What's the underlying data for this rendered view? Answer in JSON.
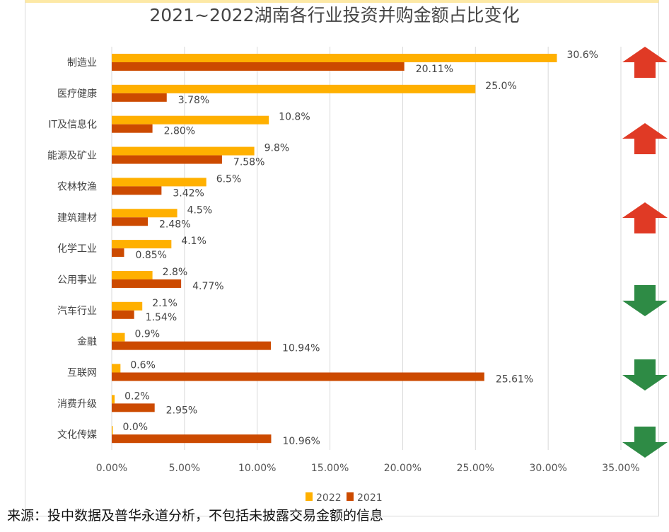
{
  "chart_data": {
    "type": "bar",
    "orientation": "horizontal",
    "title": "2021~2022湖南各行业投资并购金额占比变化",
    "categories": [
      "制造业",
      "医疗健康",
      "IT及信息化",
      "能源及矿业",
      "农林牧渔",
      "建筑建材",
      "化学工业",
      "公用事业",
      "汽车行业",
      "金融",
      "互联网",
      "消费升级",
      "文化传媒"
    ],
    "series": [
      {
        "name": "2022",
        "color": "#ffb000",
        "values": [
          30.6,
          25.0,
          10.8,
          9.8,
          6.5,
          4.5,
          4.1,
          2.8,
          2.1,
          0.9,
          0.6,
          0.2,
          0.0
        ],
        "labels": [
          "30.6%",
          "25.0%",
          "10.8%",
          "9.8%",
          "6.5%",
          "4.5%",
          "4.1%",
          "2.8%",
          "2.1%",
          "0.9%",
          "0.6%",
          "0.2%",
          "0.0%"
        ]
      },
      {
        "name": "2021",
        "color": "#cc4a00",
        "values": [
          20.11,
          3.78,
          2.8,
          7.58,
          3.42,
          2.48,
          0.85,
          4.77,
          1.54,
          10.94,
          25.61,
          2.95,
          10.96
        ],
        "labels": [
          "20.11%",
          "3.78%",
          "2.80%",
          "7.58%",
          "3.42%",
          "2.48%",
          "0.85%",
          "4.77%",
          "1.54%",
          "10.94%",
          "25.61%",
          "2.95%",
          "10.96%"
        ]
      }
    ],
    "xlim": [
      0,
      35
    ],
    "xticks": [
      "0.00%",
      "5.00%",
      "10.00%",
      "15.00%",
      "20.00%",
      "25.00%",
      "30.00%",
      "35.00%"
    ],
    "grid": true,
    "legend_position": "bottom",
    "arrows": [
      {
        "direction": "up",
        "color": "#e03a25"
      },
      {
        "direction": "up",
        "color": "#e03a25"
      },
      {
        "direction": "up",
        "color": "#e03a25"
      },
      {
        "direction": "down",
        "color": "#2e8b45"
      },
      {
        "direction": "down",
        "color": "#2e8b45"
      },
      {
        "direction": "down",
        "color": "#2e8b45"
      }
    ]
  },
  "source": "来源：投中数据及普华永道分析，不包括未披露交易金额的信息"
}
